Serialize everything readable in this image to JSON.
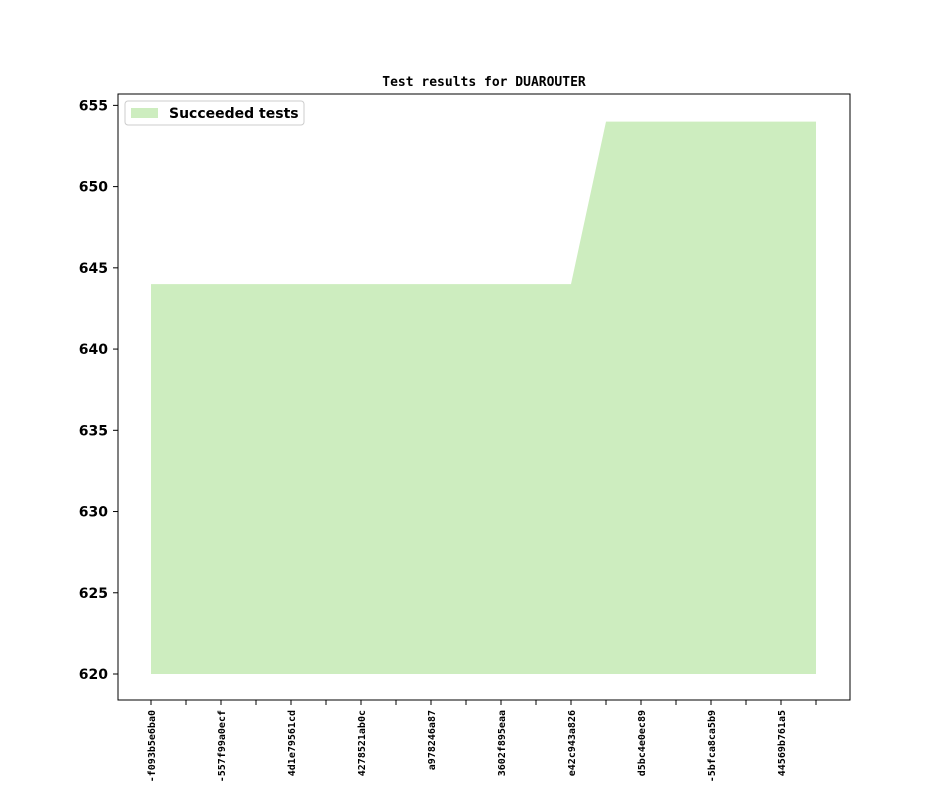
{
  "chart_data": {
    "type": "area",
    "title": "Test results for DUAROUTER",
    "categories": [
      "-f093b5e6ba0",
      null,
      "-557f99a0ecf",
      null,
      "4d1e79561cd",
      null,
      "4278521ab0c",
      null,
      "a978246a87",
      null,
      "3602f895eaa",
      null,
      "e42c943a826",
      null,
      "d5bc4e0ec89",
      null,
      "-5bfca8ca5b9",
      null,
      "44569b761a5",
      null
    ],
    "series": [
      {
        "name": "Succeeded tests",
        "color": "#cdedbf",
        "values": [
          644,
          644,
          644,
          644,
          644,
          644,
          644,
          644,
          644,
          644,
          644,
          644,
          644,
          654,
          654,
          654,
          654,
          654,
          654,
          654
        ]
      }
    ],
    "baseline": 620,
    "ylim": [
      618.4,
      655.7
    ],
    "yticks": [
      620,
      625,
      630,
      635,
      640,
      645,
      650,
      655
    ],
    "legend": "upper left",
    "grid": false
  }
}
